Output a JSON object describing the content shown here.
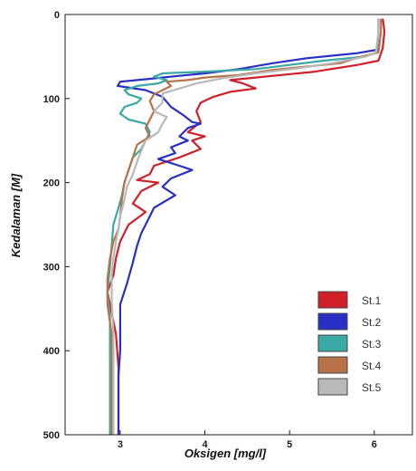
{
  "chart_data": {
    "type": "line",
    "xlabel": "Oksigen [mg/l]",
    "ylabel": "Kedalaman [M]",
    "xlim": [
      2.35,
      6.45
    ],
    "ylim": [
      0,
      500
    ],
    "y_inverted": true,
    "x_ticks": [
      3,
      4,
      5,
      6
    ],
    "y_ticks": [
      0,
      100,
      200,
      300,
      400,
      500
    ],
    "grid": false,
    "legend_position": "bottom-right",
    "series": [
      {
        "name": "St.1",
        "color": "#d0202a",
        "points": [
          [
            6.1,
            5
          ],
          [
            6.12,
            20
          ],
          [
            6.1,
            40
          ],
          [
            6.05,
            55
          ],
          [
            5.8,
            60
          ],
          [
            5.3,
            68
          ],
          [
            4.9,
            72
          ],
          [
            4.6,
            75
          ],
          [
            4.3,
            78
          ],
          [
            4.45,
            82
          ],
          [
            4.6,
            88
          ],
          [
            4.3,
            92
          ],
          [
            4.1,
            98
          ],
          [
            3.95,
            105
          ],
          [
            3.9,
            115
          ],
          [
            3.95,
            128
          ],
          [
            3.8,
            140
          ],
          [
            4.0,
            145
          ],
          [
            3.85,
            150
          ],
          [
            3.95,
            160
          ],
          [
            3.7,
            170
          ],
          [
            3.4,
            180
          ],
          [
            3.35,
            190
          ],
          [
            3.2,
            197
          ],
          [
            3.45,
            200
          ],
          [
            3.25,
            210
          ],
          [
            3.15,
            225
          ],
          [
            3.3,
            235
          ],
          [
            3.1,
            250
          ],
          [
            3.0,
            270
          ],
          [
            2.95,
            290
          ],
          [
            2.92,
            310
          ],
          [
            2.85,
            330
          ],
          [
            2.9,
            355
          ],
          [
            2.95,
            380
          ],
          [
            2.98,
            420
          ],
          [
            2.98,
            460
          ],
          [
            2.98,
            500
          ]
        ]
      },
      {
        "name": "St.2",
        "color": "#2a2fc4",
        "points": [
          [
            6.05,
            5
          ],
          [
            6.05,
            20
          ],
          [
            6.03,
            42
          ],
          [
            5.8,
            46
          ],
          [
            5.2,
            52
          ],
          [
            4.8,
            58
          ],
          [
            4.4,
            65
          ],
          [
            4.0,
            70
          ],
          [
            3.7,
            73
          ],
          [
            3.3,
            77
          ],
          [
            3.0,
            80
          ],
          [
            2.97,
            85
          ],
          [
            3.3,
            90
          ],
          [
            3.5,
            98
          ],
          [
            3.6,
            110
          ],
          [
            3.75,
            120
          ],
          [
            3.85,
            128
          ],
          [
            3.95,
            130
          ],
          [
            3.8,
            135
          ],
          [
            3.7,
            145
          ],
          [
            3.8,
            150
          ],
          [
            3.6,
            158
          ],
          [
            3.65,
            165
          ],
          [
            3.45,
            172
          ],
          [
            3.7,
            180
          ],
          [
            3.85,
            185
          ],
          [
            3.6,
            195
          ],
          [
            3.5,
            205
          ],
          [
            3.65,
            215
          ],
          [
            3.4,
            230
          ],
          [
            3.35,
            240
          ],
          [
            3.25,
            260
          ],
          [
            3.2,
            275
          ],
          [
            3.15,
            295
          ],
          [
            3.08,
            320
          ],
          [
            3.0,
            345
          ],
          [
            3.0,
            370
          ],
          [
            3.0,
            400
          ],
          [
            2.98,
            430
          ],
          [
            2.98,
            460
          ],
          [
            2.98,
            500
          ]
        ]
      },
      {
        "name": "St.3",
        "color": "#3aa8a4",
        "points": [
          [
            6.05,
            5
          ],
          [
            6.05,
            20
          ],
          [
            6.03,
            45
          ],
          [
            5.9,
            50
          ],
          [
            5.4,
            55
          ],
          [
            5.0,
            60
          ],
          [
            4.6,
            65
          ],
          [
            4.0,
            68
          ],
          [
            3.5,
            70
          ],
          [
            3.4,
            74
          ],
          [
            3.55,
            78
          ],
          [
            3.45,
            82
          ],
          [
            3.2,
            85
          ],
          [
            3.05,
            90
          ],
          [
            3.1,
            95
          ],
          [
            3.25,
            100
          ],
          [
            3.2,
            105
          ],
          [
            3.05,
            110
          ],
          [
            3.0,
            118
          ],
          [
            3.1,
            125
          ],
          [
            3.3,
            130
          ],
          [
            3.35,
            140
          ],
          [
            3.3,
            150
          ],
          [
            3.25,
            160
          ],
          [
            3.15,
            170
          ],
          [
            3.1,
            185
          ],
          [
            3.05,
            200
          ],
          [
            3.02,
            215
          ],
          [
            2.98,
            230
          ],
          [
            2.92,
            250
          ],
          [
            2.9,
            275
          ],
          [
            2.88,
            300
          ],
          [
            2.85,
            330
          ],
          [
            2.88,
            360
          ],
          [
            2.88,
            400
          ],
          [
            2.88,
            440
          ],
          [
            2.88,
            480
          ],
          [
            2.88,
            500
          ]
        ]
      },
      {
        "name": "St.4",
        "color": "#b8724a",
        "points": [
          [
            6.08,
            5
          ],
          [
            6.08,
            20
          ],
          [
            6.05,
            45
          ],
          [
            5.85,
            50
          ],
          [
            5.6,
            58
          ],
          [
            5.2,
            62
          ],
          [
            4.8,
            66
          ],
          [
            4.4,
            72
          ],
          [
            4.0,
            75
          ],
          [
            3.8,
            78
          ],
          [
            3.55,
            80
          ],
          [
            3.6,
            85
          ],
          [
            3.4,
            95
          ],
          [
            3.35,
            103
          ],
          [
            3.4,
            115
          ],
          [
            3.35,
            125
          ],
          [
            3.3,
            135
          ],
          [
            3.35,
            145
          ],
          [
            3.2,
            155
          ],
          [
            3.15,
            170
          ],
          [
            3.1,
            185
          ],
          [
            3.05,
            200
          ],
          [
            3.02,
            220
          ],
          [
            3.0,
            240
          ],
          [
            2.98,
            255
          ],
          [
            2.92,
            270
          ],
          [
            2.88,
            290
          ],
          [
            2.85,
            315
          ],
          [
            2.85,
            345
          ],
          [
            2.9,
            380
          ],
          [
            2.9,
            420
          ],
          [
            2.9,
            460
          ],
          [
            2.9,
            500
          ]
        ]
      },
      {
        "name": "St.5",
        "color": "#b9b9b9",
        "points": [
          [
            6.05,
            5
          ],
          [
            6.05,
            20
          ],
          [
            6.02,
            45
          ],
          [
            5.9,
            50
          ],
          [
            5.5,
            58
          ],
          [
            5.1,
            64
          ],
          [
            4.6,
            70
          ],
          [
            4.2,
            76
          ],
          [
            3.9,
            82
          ],
          [
            3.7,
            88
          ],
          [
            3.5,
            94
          ],
          [
            3.5,
            105
          ],
          [
            3.4,
            115
          ],
          [
            3.55,
            122
          ],
          [
            3.5,
            130
          ],
          [
            3.45,
            140
          ],
          [
            3.3,
            150
          ],
          [
            3.25,
            162
          ],
          [
            3.2,
            175
          ],
          [
            3.15,
            190
          ],
          [
            3.08,
            205
          ],
          [
            3.05,
            220
          ],
          [
            3.0,
            240
          ],
          [
            2.98,
            255
          ],
          [
            2.95,
            270
          ],
          [
            2.92,
            290
          ],
          [
            2.9,
            310
          ],
          [
            2.9,
            340
          ],
          [
            2.92,
            380
          ],
          [
            2.92,
            420
          ],
          [
            2.92,
            460
          ],
          [
            2.92,
            500
          ]
        ]
      }
    ]
  }
}
